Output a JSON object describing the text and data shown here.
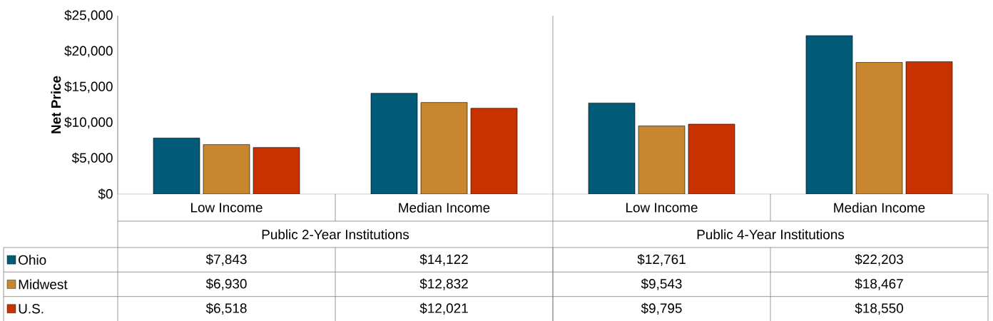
{
  "chart_data": {
    "type": "bar",
    "ylabel": "Net Price",
    "categories": [
      "Low Income",
      "Median Income",
      "Low Income",
      "Median Income"
    ],
    "annotations": [
      "Public 2-Year Institutions",
      "Public 4-Year Institutions"
    ],
    "series": [
      {
        "name": "Ohio",
        "color": "#005a78",
        "values": [
          7843,
          14122,
          12761,
          22203
        ],
        "value_labels": [
          "$7,843",
          "$14,122",
          "$12,761",
          "$22,203"
        ]
      },
      {
        "name": "Midwest",
        "color": "#c8862f",
        "values": [
          6930,
          12832,
          9543,
          18467
        ],
        "value_labels": [
          "$6,930",
          "$12,832",
          "$9,543",
          "$18,467"
        ]
      },
      {
        "name": "U.S.",
        "color": "#c83200",
        "values": [
          6518,
          12021,
          9795,
          18550
        ],
        "value_labels": [
          "$6,518",
          "$12,021",
          "$9,795",
          "$18,550"
        ]
      }
    ],
    "ylim": [
      0,
      25000
    ],
    "yticks": [
      {
        "value": 0,
        "label": "$0"
      },
      {
        "value": 5000,
        "label": "$5,000"
      },
      {
        "value": 10000,
        "label": "$10,000"
      },
      {
        "value": 15000,
        "label": "$15,000"
      },
      {
        "value": 20000,
        "label": "$20,000"
      },
      {
        "value": 25000,
        "label": "$25,000"
      }
    ],
    "grid": false,
    "legend": "bottom"
  }
}
